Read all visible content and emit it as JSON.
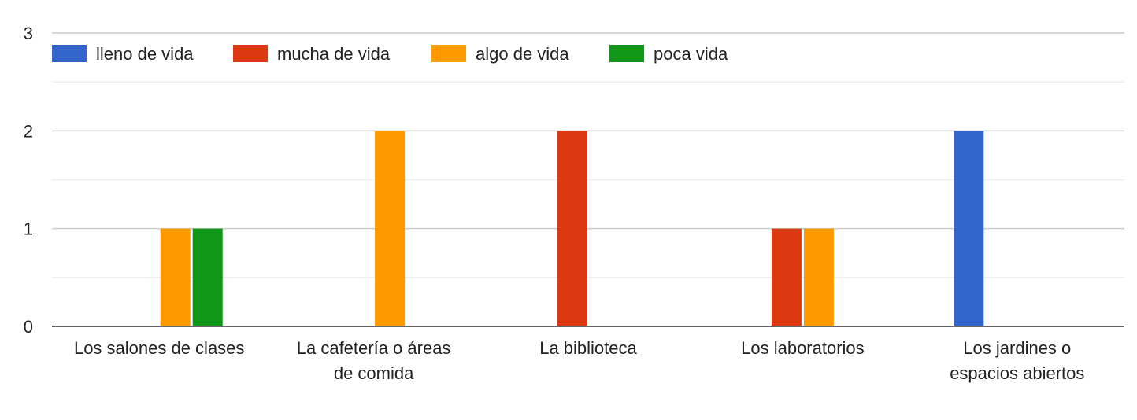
{
  "chart_data": {
    "type": "bar",
    "categories": [
      [
        "Los salones de clases"
      ],
      [
        "La cafetería o áreas",
        "de comida"
      ],
      [
        "La biblioteca"
      ],
      [
        "Los laboratorios"
      ],
      [
        "Los jardines o",
        "espacios abiertos"
      ]
    ],
    "series": [
      {
        "name": "lleno de vida",
        "color": "#3366cc",
        "values": [
          0,
          0,
          0,
          0,
          2
        ]
      },
      {
        "name": "mucha de vida",
        "color": "#dc3912",
        "values": [
          0,
          0,
          2,
          1,
          0
        ]
      },
      {
        "name": "algo de vida",
        "color": "#ff9900",
        "values": [
          1,
          2,
          0,
          1,
          0
        ]
      },
      {
        "name": "poca vida",
        "color": "#109618",
        "values": [
          1,
          0,
          0,
          0,
          0
        ]
      }
    ],
    "yticks": [
      0,
      1,
      2,
      3
    ],
    "ylim": [
      0,
      3
    ],
    "grid": true,
    "legend": "top",
    "title": "",
    "xlabel": "",
    "ylabel": ""
  }
}
